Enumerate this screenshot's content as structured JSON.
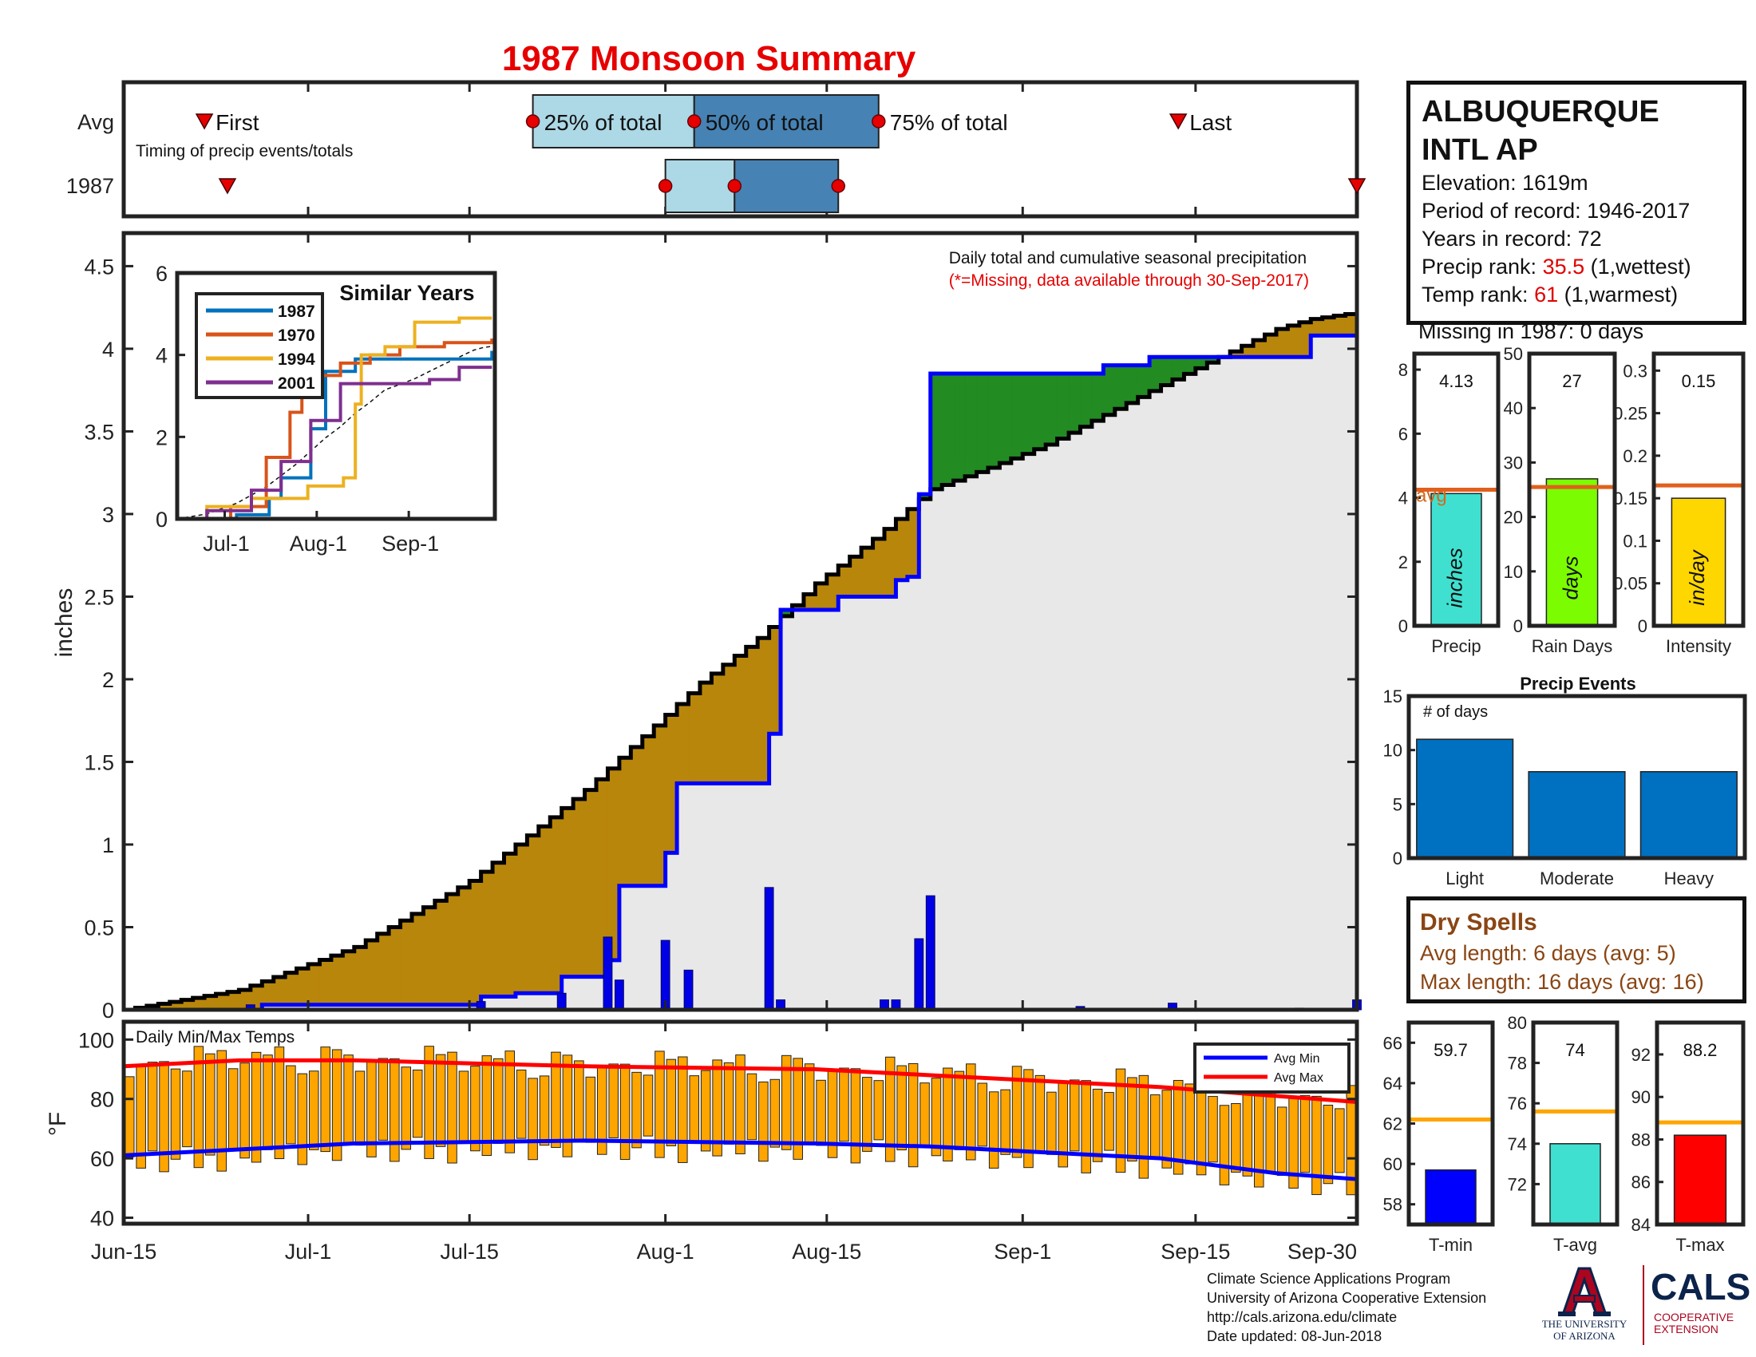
{
  "title": "1987 Monsoon Summary",
  "station": {
    "name_line1": "ALBUQUERQUE",
    "name_line2": "INTL AP",
    "elevation": "Elevation: 1619m",
    "period": "Period of record: 1946-2017",
    "years": "Years in record: 72",
    "precip_rank_label": "Precip rank: ",
    "precip_rank_value": "35.5",
    "precip_rank_note": " (1,wettest)",
    "temp_rank_label": "Temp rank: ",
    "temp_rank_value": "61",
    "temp_rank_note": " (1,warmest)",
    "missing": "Missing in 1987: 0 days"
  },
  "timing": {
    "row_labels": [
      "Avg",
      "1987"
    ],
    "subtitle": "Timing of precip events/totals",
    "first_label": "First",
    "last_label": "Last",
    "p25_label": "25% of total",
    "p50_label": "50% of total",
    "p75_label": "75% of total",
    "avg": {
      "first": 7,
      "p25": 35.5,
      "p50": 49.5,
      "p75": 65.5,
      "last": 91.5
    },
    "year": {
      "first": 9,
      "p25": 47,
      "p50": 53,
      "p75": 62,
      "last": 107.5
    }
  },
  "main_annotation": {
    "line1": "Daily total and cumulative seasonal precipitation",
    "line2": "(*=Missing, data available through 30-Sep-2017)"
  },
  "dates": {
    "x_ticks": [
      0,
      16,
      30,
      47,
      61,
      78,
      93,
      107
    ],
    "x_tick_labels": [
      "Jun-15",
      "Jul-1",
      "Jul-15",
      "Aug-1",
      "Aug-15",
      "Sep-1",
      "Sep-15",
      "Sep-30"
    ]
  },
  "chart_data": [
    {
      "type": "area",
      "id": "cumulative-precip",
      "ylabel": "inches",
      "ylim": [
        0,
        4.7
      ],
      "yticks": [
        0,
        0.5,
        1,
        1.5,
        2,
        2.5,
        3,
        3.5,
        4,
        4.5
      ],
      "x_unit": "days since Jun-15",
      "avg_cumulative": {
        "x": [
          0,
          10,
          20,
          30,
          40,
          50,
          55,
          60,
          65,
          70,
          75,
          80,
          85,
          90,
          95,
          100,
          103,
          107
        ],
        "y": [
          0,
          0.12,
          0.38,
          0.78,
          1.33,
          1.98,
          2.25,
          2.58,
          2.85,
          3.15,
          3.28,
          3.42,
          3.6,
          3.78,
          3.95,
          4.12,
          4.18,
          4.22
        ]
      },
      "year_cumulative": {
        "x": [
          0,
          11,
          12,
          30,
          31,
          34,
          38,
          42,
          43,
          47,
          48,
          56,
          57,
          62,
          67,
          68,
          69,
          70,
          80,
          85,
          89,
          103,
          107
        ],
        "y": [
          0,
          0,
          0.03,
          0.03,
          0.08,
          0.1,
          0.2,
          0.3,
          0.75,
          0.95,
          1.37,
          1.67,
          2.42,
          2.5,
          2.6,
          2.62,
          3.12,
          3.85,
          3.85,
          3.9,
          3.95,
          4.08,
          4.13
        ]
      },
      "daily": {
        "x": [
          11,
          31,
          38,
          42,
          43,
          47,
          49,
          56,
          57,
          66,
          67,
          69,
          70,
          83,
          91,
          102,
          107
        ],
        "y": [
          0.03,
          0.05,
          0.1,
          0.44,
          0.18,
          0.42,
          0.24,
          0.74,
          0.06,
          0.06,
          0.06,
          0.43,
          0.69,
          0.02,
          0.04,
          0.01,
          0.06
        ]
      },
      "colors": {
        "deficit": "#b8860b",
        "surplus": "#228b22",
        "base": "#e8e8e8",
        "daily": "#0000e6",
        "year_line": "#0000ff",
        "avg_line": "#000000"
      }
    },
    {
      "type": "line",
      "id": "similar-years",
      "title": "Similar Years",
      "ylim": [
        0,
        6
      ],
      "yticks": [
        0,
        2,
        4,
        6
      ],
      "x_tick_labels": [
        "Jul-1",
        "Aug-1",
        "Sep-1"
      ],
      "series": [
        {
          "name": "1987",
          "color": "#0072bd",
          "x": [
            0,
            20,
            31,
            35,
            45,
            50,
            60,
            63,
            106
          ],
          "y": [
            0,
            0.1,
            0.5,
            1,
            2.2,
            3.6,
            3.9,
            3.9,
            4.1
          ]
        },
        {
          "name": "1970",
          "color": "#d95319",
          "x": [
            0,
            18,
            30,
            38,
            42,
            46,
            55,
            65,
            75,
            90,
            106
          ],
          "y": [
            0,
            0.3,
            1.5,
            2.6,
            3.2,
            3.5,
            3.8,
            4.0,
            4.2,
            4.3,
            4.4
          ]
        },
        {
          "name": "1994",
          "color": "#edb120",
          "x": [
            0,
            10,
            25,
            44,
            56,
            60,
            62,
            70,
            80,
            95,
            106
          ],
          "y": [
            0,
            0.3,
            0.5,
            0.8,
            1.0,
            2.8,
            4.0,
            4.2,
            4.8,
            4.9,
            4.9
          ]
        },
        {
          "name": "2001",
          "color": "#7e2f8e",
          "x": [
            0,
            10,
            25,
            35,
            45,
            55,
            62,
            70,
            85,
            95,
            106
          ],
          "y": [
            0,
            0.2,
            0.7,
            1.4,
            2.4,
            3.3,
            3.3,
            3.3,
            3.4,
            3.7,
            3.7
          ]
        }
      ]
    },
    {
      "type": "bar",
      "id": "precip-total",
      "xlabel": "Precip",
      "ylim": [
        0,
        8.5
      ],
      "yticks": [
        0,
        2,
        4,
        6,
        8
      ],
      "value": 4.13,
      "value_label": "4.13",
      "avg": 4.25,
      "avg_label": "avg",
      "unit_label": "inches",
      "color": "#40e0d0"
    },
    {
      "type": "bar",
      "id": "rain-days",
      "xlabel": "Rain Days",
      "ylim": [
        0,
        50
      ],
      "yticks": [
        0,
        10,
        20,
        30,
        40,
        50
      ],
      "value": 27,
      "value_label": "27",
      "avg": 25.5,
      "unit_label": "days",
      "color": "#7cfc00"
    },
    {
      "type": "bar",
      "id": "intensity",
      "xlabel": "Intensity",
      "ylim": [
        0,
        0.32
      ],
      "yticks": [
        0,
        0.05,
        0.1,
        0.15,
        0.2,
        0.25,
        0.3
      ],
      "ytick_labels": [
        "0",
        "0.05",
        "0.1",
        "0.15",
        "0.2",
        "0.25",
        "0.3"
      ],
      "value": 0.15,
      "value_label": "0.15",
      "avg": 0.165,
      "unit_label": "in/day",
      "color": "#ffd700"
    },
    {
      "type": "bar",
      "id": "precip-events",
      "title": "Precip Events",
      "ylabel_inside": "# of days",
      "ylim": [
        0,
        15
      ],
      "yticks": [
        0,
        5,
        10,
        15
      ],
      "categories": [
        "Light",
        "Moderate",
        "Heavy"
      ],
      "values": [
        11,
        8,
        8
      ],
      "color": "#0070c0"
    },
    {
      "type": "bar",
      "id": "daily-temps",
      "title": "Daily Min/Max Temps",
      "ylabel": "°F",
      "ylim": [
        38,
        106
      ],
      "yticks": [
        40,
        60,
        80,
        100
      ],
      "legend": [
        "Avg Min",
        "Avg Max"
      ],
      "avg_min": {
        "x": [
          0,
          10,
          20,
          40,
          60,
          70,
          80,
          90,
          100,
          107
        ],
        "y": [
          61,
          63,
          65,
          66,
          65,
          64,
          62,
          60,
          55,
          53
        ]
      },
      "avg_max": {
        "x": [
          0,
          10,
          20,
          40,
          60,
          70,
          80,
          90,
          100,
          107
        ],
        "y": [
          91,
          93,
          93,
          91,
          90,
          88,
          86,
          84,
          81,
          79
        ]
      },
      "bar_color": "#ffa500"
    },
    {
      "type": "bar",
      "id": "t-min",
      "xlabel": "T-min",
      "ylim": [
        57,
        67
      ],
      "yticks": [
        58,
        60,
        62,
        64,
        66
      ],
      "value": 59.7,
      "value_label": "59.7",
      "avg": 62.2,
      "color": "#0000ff"
    },
    {
      "type": "bar",
      "id": "t-avg",
      "xlabel": "T-avg",
      "ylim": [
        70,
        80
      ],
      "yticks": [
        72,
        74,
        76,
        78,
        80
      ],
      "value": 74,
      "value_label": "74",
      "avg": 75.6,
      "color": "#40e0d0"
    },
    {
      "type": "bar",
      "id": "t-max",
      "xlabel": "T-max",
      "ylim": [
        84,
        93.5
      ],
      "yticks": [
        84,
        86,
        88,
        90,
        92
      ],
      "value": 88.2,
      "value_label": "88.2",
      "avg": 88.8,
      "color": "#ff0000"
    }
  ],
  "dry_spells": {
    "title": "Dry Spells",
    "avg": "Avg length: 6 days (avg: 5)",
    "max": "Max length: 16 days (avg: 16)"
  },
  "credits": {
    "line1": "Climate Science Applications Program",
    "line2": "University of Arizona Cooperative Extension",
    "line3": "http://cals.arizona.edu/climate",
    "line4": "Date updated: 08-Jun-2018"
  },
  "logos": {
    "ua_line1": "THE UNIVERSITY",
    "ua_line2": "OF ARIZONA",
    "cals": "CALS",
    "cals_line1": "COOPERATIVE",
    "cals_line2": "EXTENSION"
  },
  "colors": {
    "title": "#e60000",
    "avg_marker": "#e60000",
    "light_blue": "#add8e6",
    "steel_blue": "#4682b4"
  }
}
